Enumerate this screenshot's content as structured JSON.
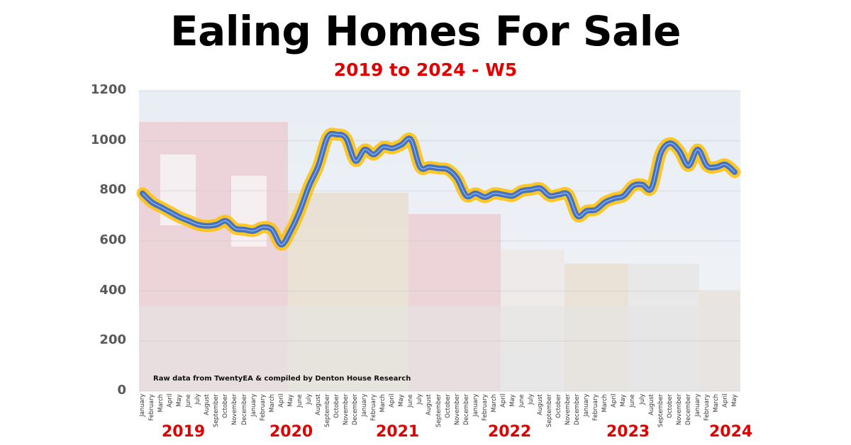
{
  "header": {
    "title": "Ealing Homes For Sale",
    "subtitle": "2019 to 2024 - W5"
  },
  "credit": "Raw data from TwentyEA & compiled by Denton House Research",
  "colors": {
    "line": "#4472c4",
    "glow": "#ffc000",
    "title": "#000000",
    "accent_red": "#e00000",
    "axis_text": "#595959"
  },
  "y_axis": {
    "ticks": [
      "1200",
      "1000",
      "800",
      "600",
      "400",
      "200",
      "0"
    ]
  },
  "x_axis": {
    "months": [
      "January",
      "February",
      "March",
      "April",
      "May",
      "June",
      "July",
      "August",
      "September",
      "October",
      "November",
      "December",
      "January",
      "February",
      "March",
      "April",
      "May",
      "June",
      "July",
      "August",
      "September",
      "October",
      "November",
      "December",
      "January",
      "February",
      "March",
      "April",
      "May",
      "June",
      "July",
      "August",
      "September",
      "October",
      "November",
      "December",
      "January",
      "February",
      "March",
      "April",
      "May",
      "June",
      "July",
      "August",
      "September",
      "October",
      "November",
      "December",
      "January",
      "February",
      "March",
      "April",
      "May",
      "June",
      "July",
      "August",
      "September",
      "October",
      "November",
      "December",
      "January",
      "February",
      "March",
      "April",
      "May"
    ],
    "years": [
      "2019",
      "2020",
      "2021",
      "2022",
      "2023",
      "2024"
    ]
  },
  "chart_data": {
    "type": "line",
    "title": "Ealing Homes For Sale",
    "subtitle": "2019 to 2024 - W5",
    "xlabel": "",
    "ylabel": "",
    "ylim": [
      0,
      1200
    ],
    "yticks": [
      0,
      200,
      400,
      600,
      800,
      1000,
      1200
    ],
    "grid": true,
    "legend": null,
    "annotation": "Raw data from TwentyEA & compiled by Denton House Research",
    "x": [
      "Jan 2019",
      "Feb 2019",
      "Mar 2019",
      "Apr 2019",
      "May 2019",
      "Jun 2019",
      "Jul 2019",
      "Aug 2019",
      "Sep 2019",
      "Oct 2019",
      "Nov 2019",
      "Dec 2019",
      "Jan 2020",
      "Feb 2020",
      "Mar 2020",
      "Apr 2020",
      "May 2020",
      "Jun 2020",
      "Jul 2020",
      "Aug 2020",
      "Sep 2020",
      "Oct 2020",
      "Nov 2020",
      "Dec 2020",
      "Jan 2021",
      "Feb 2021",
      "Mar 2021",
      "Apr 2021",
      "May 2021",
      "Jun 2021",
      "Jul 2021",
      "Aug 2021",
      "Sep 2021",
      "Oct 2021",
      "Nov 2021",
      "Dec 2021",
      "Jan 2022",
      "Feb 2022",
      "Mar 2022",
      "Apr 2022",
      "May 2022",
      "Jun 2022",
      "Jul 2022",
      "Aug 2022",
      "Sep 2022",
      "Oct 2022",
      "Nov 2022",
      "Dec 2022",
      "Jan 2023",
      "Feb 2023",
      "Mar 2023",
      "Apr 2023",
      "May 2023",
      "Jun 2023",
      "Jul 2023",
      "Aug 2023",
      "Sep 2023",
      "Oct 2023",
      "Nov 2023",
      "Dec 2023",
      "Jan 2024",
      "Feb 2024",
      "Mar 2024",
      "Apr 2024",
      "May 2024"
    ],
    "series": [
      {
        "name": "Homes For Sale",
        "values": [
          790,
          755,
          735,
          715,
          695,
          680,
          665,
          660,
          665,
          680,
          650,
          645,
          640,
          655,
          645,
          585,
          640,
          720,
          820,
          900,
          1015,
          1025,
          1010,
          920,
          965,
          945,
          975,
          970,
          985,
          1005,
          895,
          895,
          890,
          885,
          850,
          780,
          790,
          775,
          790,
          785,
          780,
          800,
          805,
          810,
          780,
          785,
          785,
          700,
          720,
          725,
          755,
          770,
          780,
          820,
          825,
          810,
          950,
          990,
          960,
          900,
          965,
          900,
          895,
          905,
          875
        ]
      }
    ]
  }
}
